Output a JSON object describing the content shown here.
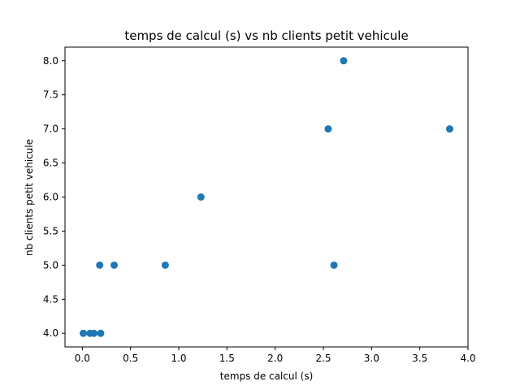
{
  "chart_data": {
    "type": "scatter",
    "title": "temps de calcul (s)   vs   nb clients petit vehicule",
    "xlabel": "temps de calcul (s)",
    "ylabel": "nb clients petit vehicule",
    "xlim": [
      -0.18,
      4.0
    ],
    "ylim": [
      3.8,
      8.2
    ],
    "xticks": [
      0.0,
      0.5,
      1.0,
      1.5,
      2.0,
      2.5,
      3.0,
      3.5,
      4.0
    ],
    "xtick_labels": [
      "0.0",
      "0.5",
      "1.0",
      "1.5",
      "2.0",
      "2.5",
      "3.0",
      "3.5",
      "4.0"
    ],
    "yticks": [
      4.0,
      4.5,
      5.0,
      5.5,
      6.0,
      6.5,
      7.0,
      7.5,
      8.0
    ],
    "ytick_labels": [
      "4.0",
      "4.5",
      "5.0",
      "5.5",
      "6.0",
      "6.5",
      "7.0",
      "7.5",
      "8.0"
    ],
    "grid": false,
    "marker_color": "#1f77b4",
    "points": [
      {
        "x": 0.01,
        "y": 4
      },
      {
        "x": 0.08,
        "y": 4
      },
      {
        "x": 0.12,
        "y": 4
      },
      {
        "x": 0.19,
        "y": 4
      },
      {
        "x": 0.18,
        "y": 5
      },
      {
        "x": 0.33,
        "y": 5
      },
      {
        "x": 0.86,
        "y": 5
      },
      {
        "x": 2.61,
        "y": 5
      },
      {
        "x": 1.23,
        "y": 6
      },
      {
        "x": 2.55,
        "y": 7
      },
      {
        "x": 3.81,
        "y": 7
      },
      {
        "x": 2.71,
        "y": 8
      }
    ]
  }
}
